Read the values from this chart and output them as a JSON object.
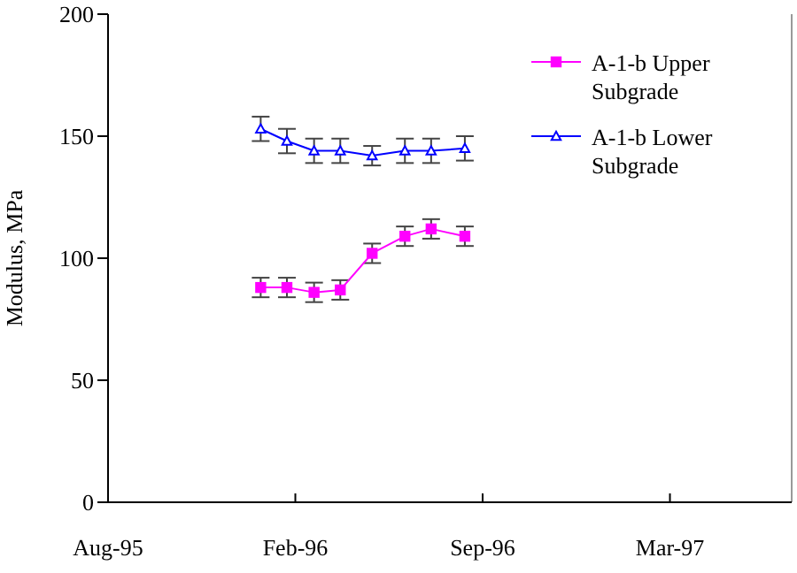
{
  "chart_data": {
    "type": "line",
    "ylabel": "Modulus, MPa",
    "x": [
      "1996-01-18",
      "1996-02-15",
      "1996-03-15",
      "1996-04-12",
      "1996-05-16",
      "1996-06-20",
      "1996-07-18",
      "1996-08-23"
    ],
    "series": [
      {
        "name": "A-1-b Upper Subgrade",
        "color": "#ff00ff",
        "marker": "square",
        "values": [
          88,
          88,
          86,
          87,
          102,
          109,
          112,
          109
        ],
        "errors": [
          4,
          4,
          4,
          4,
          4,
          4,
          4,
          4
        ]
      },
      {
        "name": "A-1-b Lower Subgrade",
        "color": "#0000ff",
        "marker": "triangle",
        "values": [
          153,
          148,
          144,
          144,
          142,
          144,
          144,
          145
        ],
        "errors": [
          5,
          5,
          5,
          5,
          4,
          5,
          5,
          5
        ]
      }
    ],
    "xlim": [
      "1995-08-08",
      "1997-08-07"
    ],
    "xticks": [
      {
        "value": "1995-08-08",
        "label": "Aug-95"
      },
      {
        "value": "1996-02-24",
        "label": "Feb-96"
      },
      {
        "value": "1996-09-11",
        "label": "Sep-96"
      },
      {
        "value": "1997-03-30",
        "label": "Mar-97"
      }
    ],
    "ylim": [
      0,
      200
    ],
    "yticks": [
      0,
      50,
      100,
      150,
      200
    ],
    "grid": false,
    "legend": "top right",
    "line_style": "solid"
  }
}
